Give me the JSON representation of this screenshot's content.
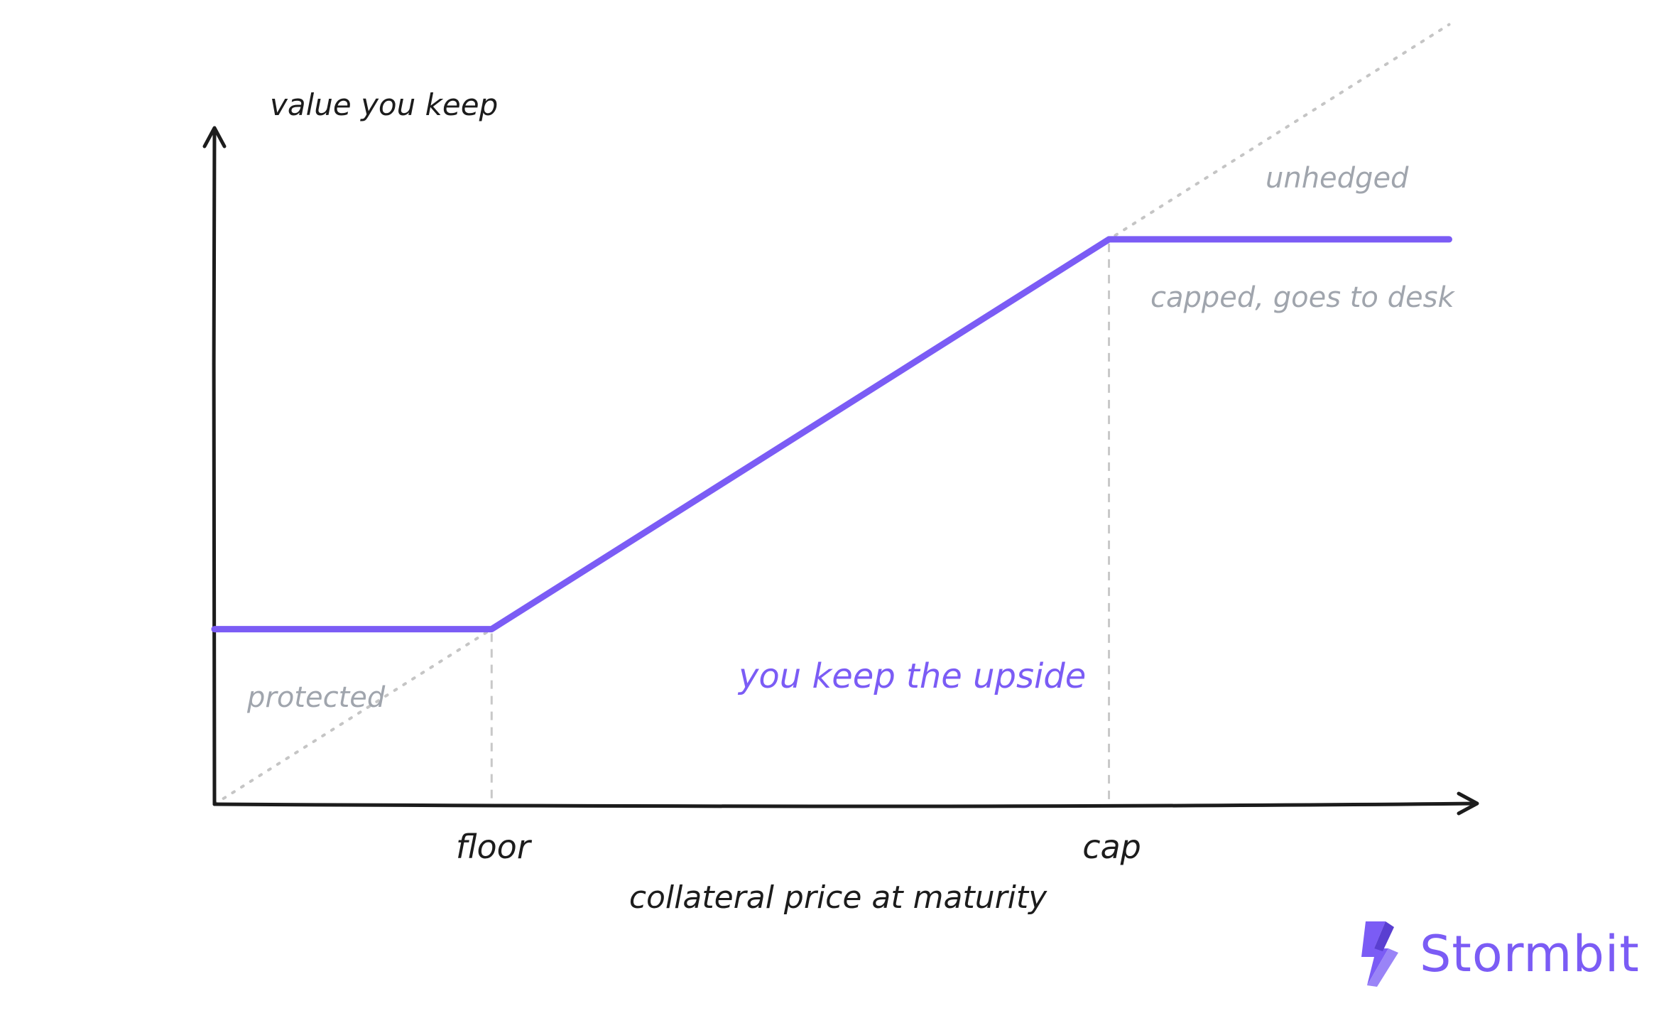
{
  "chart_data": {
    "type": "line",
    "title": "",
    "xlabel": "collateral price at maturity",
    "ylabel": "value you keep",
    "x_ticks": [
      "floor",
      "cap"
    ],
    "x_tick_positions": {
      "floor": 0.22,
      "cap": 0.71
    },
    "xlim": [
      0,
      1
    ],
    "ylim": [
      0,
      1
    ],
    "grid": false,
    "series": [
      {
        "role": "hedged",
        "style": "solid",
        "color": "#7b5cf5",
        "x": [
          0,
          0.22,
          0.71,
          0.98
        ],
        "y": [
          0.22,
          0.22,
          0.71,
          0.71
        ]
      },
      {
        "role": "unhedged",
        "style": "dotted",
        "color": "#c5c5c5",
        "x": [
          0,
          0.98
        ],
        "y": [
          0,
          0.98
        ]
      }
    ],
    "annotations": {
      "unhedged": "unhedged",
      "capped": "capped, goes to desk",
      "protected": "protected",
      "upside": "you keep the upside"
    }
  },
  "colors": {
    "accent": "#7b5cf5",
    "axis": "#1c1c1c",
    "muted_text": "#a0a5ad",
    "reference_line": "#c5c5c5"
  },
  "brand": {
    "name": "Stormbit",
    "icon": "lightning-bolt-icon"
  }
}
